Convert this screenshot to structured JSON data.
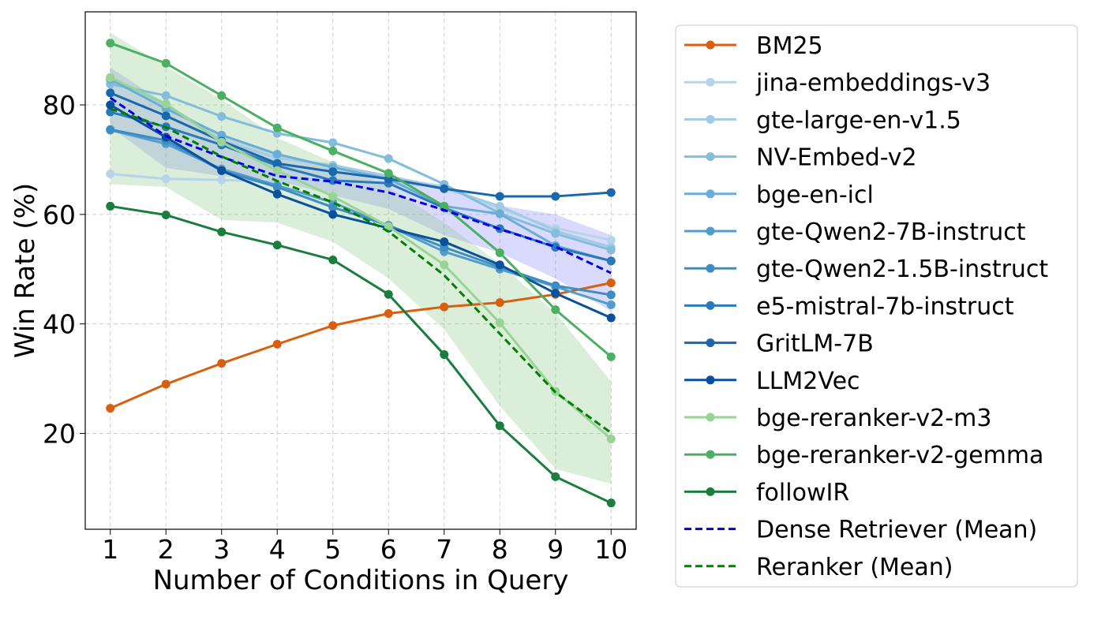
{
  "chart_data": {
    "type": "line",
    "title": "",
    "xlabel": "Number of Conditions in Query",
    "ylabel": "Win Rate (%)",
    "x": [
      1,
      2,
      3,
      4,
      5,
      6,
      7,
      8,
      9,
      10
    ],
    "xlim": [
      0.55,
      10.45
    ],
    "ylim": [
      2.5,
      97
    ],
    "yticks": [
      20,
      40,
      60,
      80
    ],
    "grid": true,
    "legend_position": "outside-right",
    "series": [
      {
        "name": "BM25",
        "color": "#d95f0e",
        "style": "solid",
        "marker": true,
        "values": [
          24.6,
          29.0,
          32.8,
          36.3,
          39.7,
          41.9,
          43.1,
          43.9,
          45.4,
          47.5
        ]
      },
      {
        "name": "jina-embeddings-v3",
        "color": "#b7d4ea",
        "style": "solid",
        "marker": true,
        "values": [
          67.4,
          66.5,
          66.3,
          66.0,
          65.9,
          65.6,
          65.2,
          61.0,
          57.5,
          55.3
        ]
      },
      {
        "name": "gte-large-en-v1.5",
        "color": "#a1cbe2",
        "style": "solid",
        "marker": true,
        "values": [
          84.5,
          80.0,
          73.5,
          70.3,
          69.0,
          67.0,
          64.8,
          61.5,
          57.0,
          54.0
        ]
      },
      {
        "name": "NV-Embed-v2",
        "color": "#84bcdb",
        "style": "solid",
        "marker": true,
        "values": [
          83.8,
          81.7,
          77.9,
          74.8,
          73.1,
          70.2,
          65.5,
          60.2,
          56.5,
          53.5
        ]
      },
      {
        "name": "bge-en-icl",
        "color": "#6aaed6",
        "style": "solid",
        "marker": true,
        "values": [
          84.7,
          79.3,
          74.5,
          71.0,
          68.6,
          66.5,
          61.5,
          60.1,
          54.3,
          51.5
        ]
      },
      {
        "name": "gte-Qwen2-7B-instruct",
        "color": "#529dcc",
        "style": "solid",
        "marker": true,
        "values": [
          75.4,
          72.9,
          68.3,
          65.3,
          62.2,
          57.9,
          53.2,
          50.0,
          46.8,
          43.5
        ]
      },
      {
        "name": "gte-Qwen2-1.5B-instruct",
        "color": "#3d8dc3",
        "style": "solid",
        "marker": true,
        "values": [
          75.5,
          73.5,
          68.0,
          65.0,
          61.3,
          58.0,
          54.0,
          50.4,
          47.0,
          45.3
        ]
      },
      {
        "name": "e5-mistral-7b-instruct",
        "color": "#2a7ab9",
        "style": "solid",
        "marker": true,
        "values": [
          78.7,
          76.0,
          72.7,
          68.9,
          66.2,
          65.7,
          61.2,
          57.4,
          54.0,
          51.5
        ]
      },
      {
        "name": "GritLM-7B",
        "color": "#1967ad",
        "style": "solid",
        "marker": true,
        "values": [
          82.2,
          78.0,
          73.4,
          69.3,
          67.8,
          66.5,
          64.7,
          63.3,
          63.3,
          64.0
        ]
      },
      {
        "name": "LLM2Vec",
        "color": "#0b509c",
        "style": "solid",
        "marker": true,
        "values": [
          80.0,
          74.1,
          68.0,
          63.7,
          60.0,
          57.5,
          55.0,
          50.8,
          45.6,
          41.1
        ]
      },
      {
        "name": "bge-reranker-v2-m3",
        "color": "#98d594",
        "style": "solid",
        "marker": true,
        "values": [
          85.0,
          80.2,
          73.2,
          68.0,
          63.3,
          57.8,
          50.8,
          40.2,
          27.7,
          19.0
        ]
      },
      {
        "name": "bge-reranker-v2-gemma",
        "color": "#4bb062",
        "style": "solid",
        "marker": true,
        "values": [
          91.3,
          87.6,
          81.7,
          75.8,
          71.6,
          67.5,
          61.5,
          53.0,
          42.6,
          34.0
        ]
      },
      {
        "name": "followIR",
        "color": "#1b7e3e",
        "style": "solid",
        "marker": true,
        "values": [
          61.5,
          59.9,
          56.8,
          54.4,
          51.7,
          45.4,
          34.4,
          21.4,
          12.1,
          7.3
        ]
      },
      {
        "name": "Dense Retriever (Mean)",
        "color": "#0000ee",
        "style": "dashed",
        "marker": false,
        "values": [
          81.3,
          74.3,
          70.5,
          67.0,
          66.0,
          64.0,
          60.8,
          57.3,
          54.1,
          49.3
        ]
      },
      {
        "name": "Reranker (Mean)",
        "color": "#008000",
        "style": "dashed",
        "marker": false,
        "values": [
          79.3,
          75.9,
          70.6,
          66.1,
          62.2,
          56.9,
          48.9,
          38.2,
          27.5,
          20.1
        ]
      }
    ],
    "bands": [
      {
        "name": "Dense Retriever range",
        "color": "#7b7bff",
        "opacity": 0.28,
        "lower": [
          76.0,
          68.5,
          67.0,
          66.2,
          63.5,
          61.0,
          56.2,
          53.0,
          48.3,
          42.3
        ],
        "upper": [
          86.8,
          80.2,
          74.4,
          71.0,
          68.6,
          66.9,
          65.4,
          61.6,
          60.0,
          56.2
        ]
      },
      {
        "name": "Reranker range",
        "color": "#86c686",
        "opacity": 0.3,
        "lower": [
          65.5,
          65.0,
          59.0,
          58.5,
          55.0,
          48.3,
          39.0,
          25.0,
          13.5,
          10.8
        ],
        "upper": [
          93.2,
          87.0,
          81.0,
          74.0,
          69.5,
          65.0,
          58.5,
          51.0,
          42.0,
          29.5
        ]
      }
    ]
  }
}
